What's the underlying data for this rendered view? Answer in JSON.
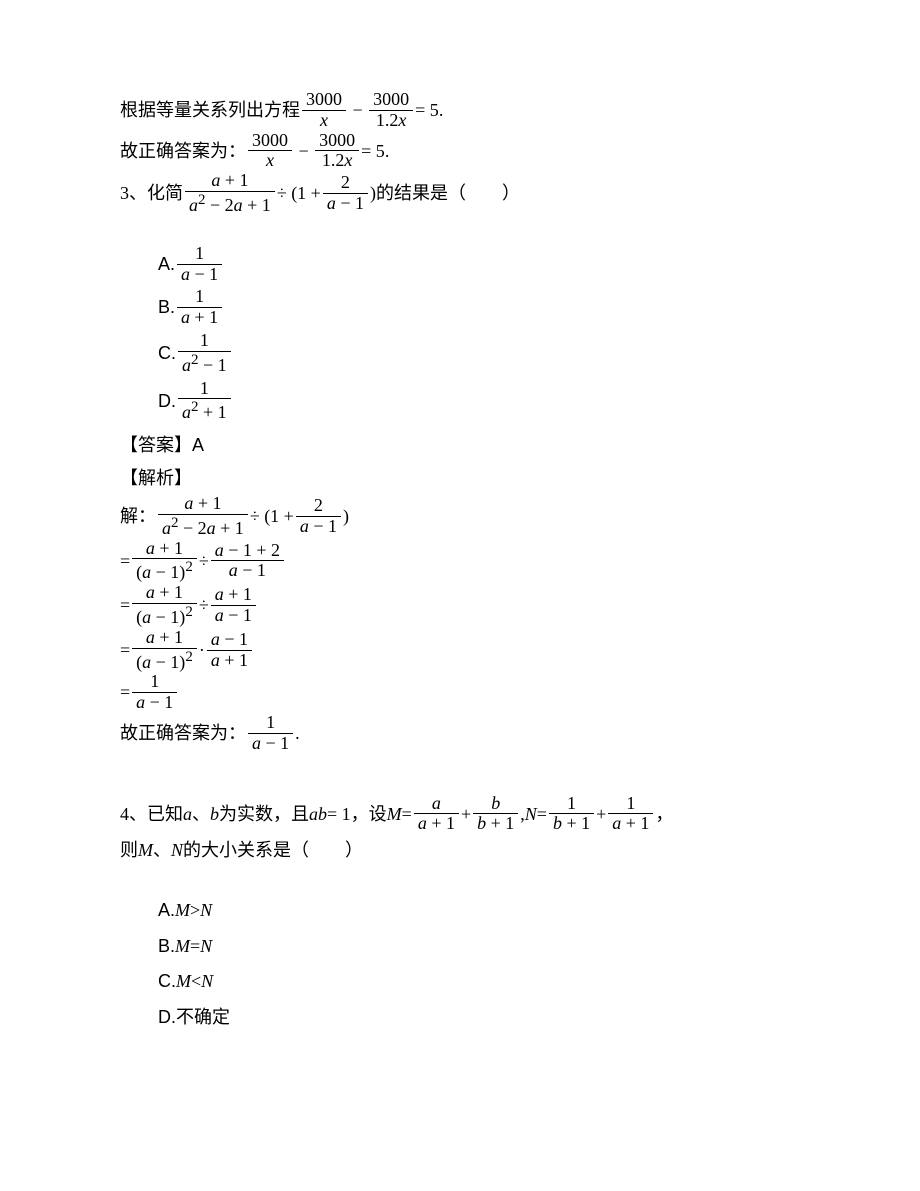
{
  "s1": {
    "pre": "根据等量关系列出方程",
    "eq1_n1": "3000",
    "eq1_d1_var": "x",
    "eq1_n2": "3000",
    "eq1_d2_num": "1.2",
    "eq1_d2_var": "x",
    "eq1_rhs": "= 5",
    "period": ".",
    "ans_pre": "故正确答案为：",
    "eq2_n1": "3000",
    "eq2_d1_var": "x",
    "eq2_n2": "3000",
    "eq2_d2_num": "1.2",
    "eq2_d2_var": "x",
    "eq2_rhs": "= 5",
    "period2": "."
  },
  "q3": {
    "num": "3、",
    "pre": "化简",
    "f_num_a": "a",
    "f_num_p": " + 1",
    "f_den_a2": "a",
    "f_den_sup": "2",
    "f_den_mid": " − 2",
    "f_den_a": "a",
    "f_den_tail": " + 1",
    "div": " ÷ (1 + ",
    "f2_num": "2",
    "f2_den_a": "a",
    "f2_den_tail": " − 1",
    "close": ")",
    "post": "的结果是（　　）",
    "A": "A. ",
    "A_num": "1",
    "A_den_a": "a",
    "A_den_t": " − 1",
    "B": "B. ",
    "B_num": "1",
    "B_den_a": "a",
    "B_den_t": " + 1",
    "C": "C. ",
    "C_num": "1",
    "C_den_a": "a",
    "C_den_sup": "2",
    "C_den_t": " − 1",
    "D": "D. ",
    "D_num": "1",
    "D_den_a": "a",
    "D_den_sup": "2",
    "D_den_t": " + 1",
    "ans_label": "【答案】",
    "ans_val": "A",
    "sol_label": "【解析】",
    "sol_pre": "解：",
    "s1": {
      "n_a": "a",
      "n_t": " + 1",
      "d_a2": "a",
      "d_sup": "2",
      "d_mid": " − 2",
      "d_a": "a",
      "d_t": " + 1",
      "div": " ÷ (1 + ",
      "n2": "2",
      "d2_a": "a",
      "d2_t": " − 1",
      "close": ")"
    },
    "s2": {
      "eq": "= ",
      "n_a": "a",
      "n_t": " + 1",
      "d_open": "(",
      "d_a": "a",
      "d_mid": " − 1)",
      "d_sup": "2",
      "div": " ÷ ",
      "n2_a": "a",
      "n2_t": " − 1 + 2",
      "d2_a": "a",
      "d2_t": " − 1"
    },
    "s3": {
      "eq": "= ",
      "n_a": "a",
      "n_t": " + 1",
      "d_open": "(",
      "d_a": "a",
      "d_mid": " − 1)",
      "d_sup": "2",
      "div": " ÷ ",
      "n2_a": "a",
      "n2_t": " + 1",
      "d2_a": "a",
      "d2_t": " − 1"
    },
    "s4": {
      "eq": "= ",
      "n_a": "a",
      "n_t": " + 1",
      "d_open": "(",
      "d_a": "a",
      "d_mid": " − 1)",
      "d_sup": "2",
      "dot": " · ",
      "n2_a": "a",
      "n2_t": " − 1",
      "d2_a": "a",
      "d2_t": " + 1"
    },
    "s5": {
      "eq": "= ",
      "n": "1",
      "d_a": "a",
      "d_t": " − 1"
    },
    "ans2_pre": "故正确答案为：",
    "ans2_n": "1",
    "ans2_d_a": "a",
    "ans2_d_t": " − 1",
    "ans2_dot": "."
  },
  "q4": {
    "num": "4、",
    "pre": "已知",
    "a": "a",
    "sep": "、",
    "b": "b",
    "mid1": "为实数，且",
    "ab": "ab",
    "eq1": " = 1",
    "mid2": "，设",
    "M": "M",
    "eqM": " = ",
    "m1_n_a": "a",
    "m1_d_a": "a",
    "m1_d_t": " + 1",
    "plus": " + ",
    "m2_n_b": "b",
    "m2_d_b": "b",
    "m2_d_t": " + 1",
    "comma": ",",
    "N": "N",
    "eqN": " = ",
    "n1_num": "1",
    "n1_d_b": "b",
    "n1_d_t": " + 1",
    "n2_num": "1",
    "n2_d_a": "a",
    "n2_d_t": " + 1",
    "tail": "，",
    "line2_pre": "则",
    "line2_M": "M",
    "line2_sep": "、",
    "line2_N": "N",
    "line2_post": "的大小关系是（　　）",
    "A": "A. ",
    "A_M": "M",
    "A_gt": " > ",
    "A_N": "N",
    "B": "B. ",
    "B_M": "M",
    "B_eq": " = ",
    "B_N": "N",
    "C": "C. ",
    "C_M": "M",
    "C_lt": " < ",
    "C_N": "N",
    "D": "D. ",
    "D_txt": "不确定"
  }
}
